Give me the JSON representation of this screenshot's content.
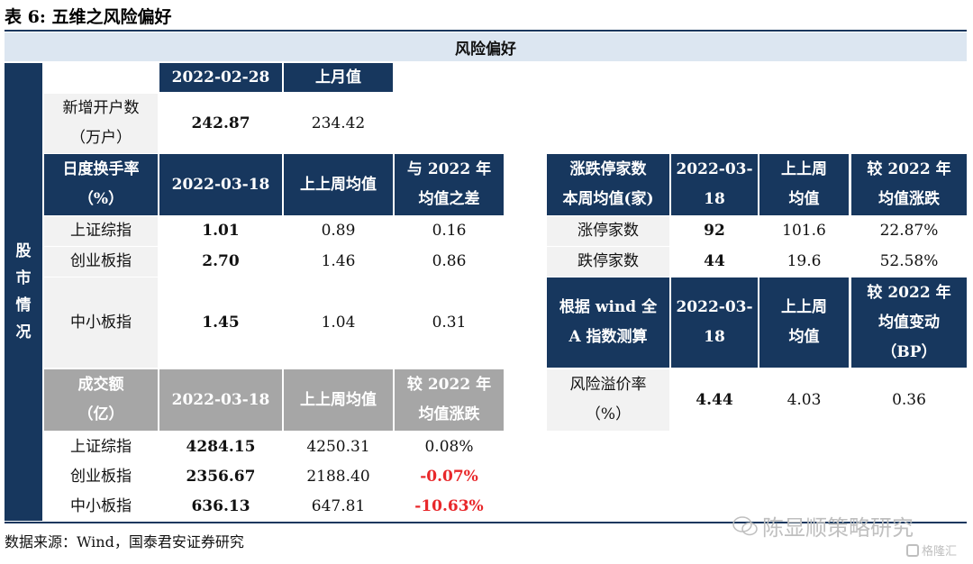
{
  "title": "表 6:  五维之风险偏好",
  "banner": "风险偏好",
  "side_label": [
    "股",
    "市",
    "情",
    "况"
  ],
  "accounts": {
    "headers": [
      "2022-02-28",
      "上月值"
    ],
    "label": [
      "新增开户数",
      "（万户）"
    ],
    "values": [
      "242.87",
      "234.42"
    ]
  },
  "turnover": {
    "label": [
      "日度换手率",
      "（%）"
    ],
    "headers": [
      "2022-03-18",
      "上上周均值",
      [
        "与 2022 年",
        "均值之差"
      ]
    ],
    "rows": [
      {
        "name": "上证综指",
        "v1": "1.01",
        "v2": "0.89",
        "v3": "0.16"
      },
      {
        "name": "创业板指",
        "v1": "2.70",
        "v2": "1.46",
        "v3": "0.86"
      },
      {
        "name": "中小板指",
        "v1": "1.45",
        "v2": "1.04",
        "v3": "0.31"
      }
    ]
  },
  "volume": {
    "label": [
      "成交额",
      "（亿）"
    ],
    "headers": [
      "2022-03-18",
      "上上周均值",
      [
        "较 2022 年",
        "均值涨跌"
      ]
    ],
    "rows": [
      {
        "name": "上证综指",
        "v1": "4284.15",
        "v2": "4250.31",
        "v3": "0.08%"
      },
      {
        "name": "创业板指",
        "v1": "2356.67",
        "v2": "2188.40",
        "v3": "-0.07%"
      },
      {
        "name": "中小板指",
        "v1": "636.13",
        "v2": "647.81",
        "v3": "-10.63%"
      }
    ]
  },
  "limit": {
    "label": [
      "涨跌停家数",
      "本周均值(家)"
    ],
    "headers": [
      [
        "2022-03-",
        "18"
      ],
      [
        "上上周",
        "均值"
      ],
      [
        "较 2022 年",
        "均值涨跌"
      ]
    ],
    "rows": [
      {
        "name": "涨停家数",
        "v1": "92",
        "v2": "101.6",
        "v3": "22.87%"
      },
      {
        "name": "跌停家数",
        "v1": "44",
        "v2": "19.6",
        "v3": "52.58%"
      }
    ]
  },
  "premium": {
    "label": [
      "根据 wind 全",
      "A 指数测算"
    ],
    "headers": [
      [
        "2022-03-",
        "18"
      ],
      [
        "上上周",
        "均值"
      ],
      [
        "较 2022 年",
        "均值变动",
        "（BP）"
      ]
    ],
    "row_label": [
      "风险溢价率",
      "（%）"
    ],
    "values": [
      "4.44",
      "4.03",
      "0.36"
    ]
  },
  "source": "数据来源：Wind，国泰君安证券研究",
  "watermark": "陈显顺策略研究",
  "watermark_logo": "格隆汇",
  "colors": {
    "navy": "#17375e",
    "gray": "#a6a6a6",
    "banner": "#dce6f1",
    "negative": "#e8272a"
  }
}
